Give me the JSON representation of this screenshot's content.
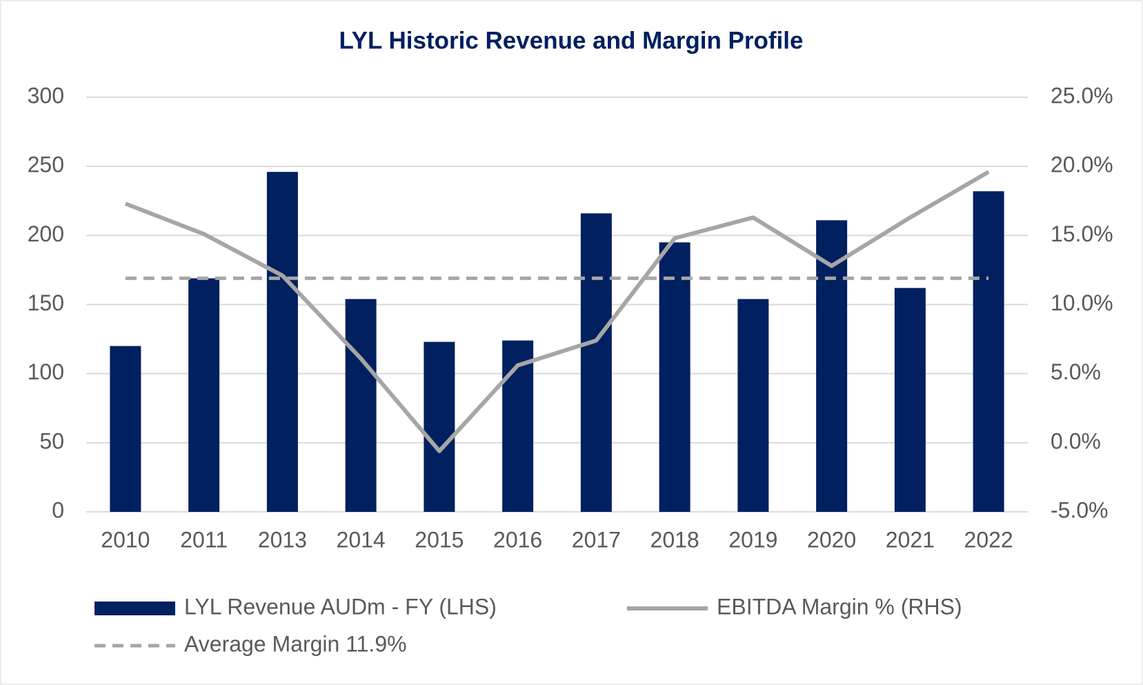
{
  "chart_data": {
    "type": "bar_line",
    "title": "LYL Historic Revenue and Margin Profile",
    "categories": [
      "2010",
      "2011",
      "2013",
      "2014",
      "2015",
      "2016",
      "2017",
      "2018",
      "2019",
      "2020",
      "2021",
      "2022"
    ],
    "series": [
      {
        "name": "LYL Revenue AUDm - FY (LHS)",
        "type": "bar",
        "color": "#002060",
        "values": [
          120,
          169,
          246,
          154,
          123,
          124,
          216,
          195,
          154,
          211,
          162,
          232
        ]
      },
      {
        "name": "EBITDA Margin % (RHS)",
        "type": "line",
        "axis": "y2",
        "color": "#a6a6a6",
        "values": [
          17.3,
          15.1,
          12.1,
          6.1,
          -0.6,
          5.6,
          7.4,
          14.8,
          16.3,
          12.8,
          16.3,
          19.6
        ]
      },
      {
        "name": "Average Margin 11.9%",
        "type": "line",
        "dashed": true,
        "axis": "y2",
        "color": "#a6a6a6",
        "values": [
          11.9,
          11.9,
          11.9,
          11.9,
          11.9,
          11.9,
          11.9,
          11.9,
          11.9,
          11.9,
          11.9,
          11.9
        ]
      }
    ],
    "ylim": [
      0,
      300
    ],
    "yticks": [
      0,
      50,
      100,
      150,
      200,
      250,
      300
    ],
    "y2lim": [
      -5,
      25
    ],
    "y2ticks": [
      {
        "value": -5,
        "label": "-5.0%"
      },
      {
        "value": 0,
        "label": "0.0%"
      },
      {
        "value": 5,
        "label": "5.0%"
      },
      {
        "value": 10,
        "label": "10.0%"
      },
      {
        "value": 15,
        "label": "15.0%"
      },
      {
        "value": 20,
        "label": "20.0%"
      },
      {
        "value": 25,
        "label": "25.0%"
      }
    ],
    "grid": true,
    "legend": "bottom"
  }
}
